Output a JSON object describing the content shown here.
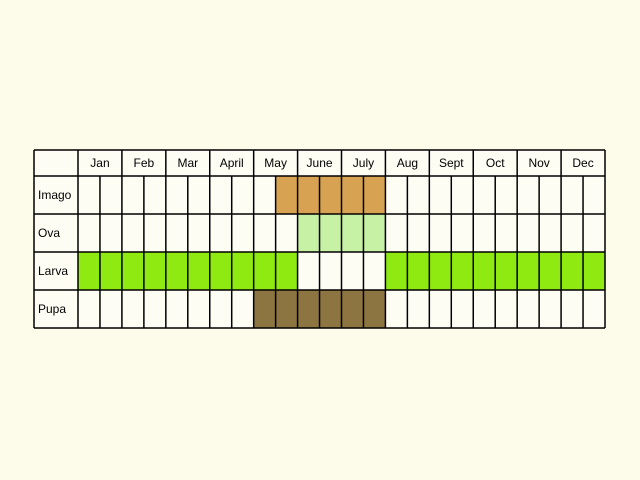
{
  "months": [
    "Jan",
    "Feb",
    "Mar",
    "April",
    "May",
    "June",
    "July",
    "Aug",
    "Sept",
    "Oct",
    "Nov",
    "Dec"
  ],
  "stages": [
    {
      "label": "Imago",
      "color": "#d7a352",
      "periods": [
        [
          4.5,
          7.0
        ]
      ]
    },
    {
      "label": "Ova",
      "color": "#c7f1a4",
      "periods": [
        [
          5.0,
          7.0
        ]
      ]
    },
    {
      "label": "Larva",
      "color": "#8eea11",
      "periods": [
        [
          0.0,
          5.0
        ],
        [
          7.0,
          12.0
        ]
      ]
    },
    {
      "label": "Pupa",
      "color": "#8c7540",
      "periods": [
        [
          4.0,
          7.0
        ]
      ]
    }
  ],
  "colors": {
    "background": "#fdfbe9",
    "cell": "#fefdf4",
    "grid": "#000000"
  }
}
